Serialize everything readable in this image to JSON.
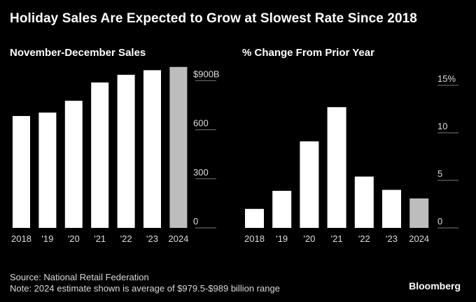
{
  "title": "Holiday Sales Are Expected to Grow at Slowest Rate Since 2018",
  "footer": {
    "source": "Source: National Retail Federation",
    "note": "Note: 2024 estimate shown is average of $979.5-$989 billion range",
    "brand": "Bloomberg"
  },
  "colors": {
    "background": "#000000",
    "bar": "#ffffff",
    "estimate_bar": "#bdbdbd",
    "axis_text": "#dddddd"
  },
  "chart_data": [
    {
      "type": "bar",
      "title": "November-December Sales",
      "categories": [
        "2018",
        "'19",
        "'20",
        "'21",
        "'22",
        "'23",
        "2024"
      ],
      "values": [
        684,
        705,
        777,
        889,
        936,
        964,
        984
      ],
      "estimate_index": 6,
      "ylim": [
        0,
        1000
      ],
      "yticks": [
        0,
        300,
        600,
        900
      ],
      "ytick_labels": [
        "0",
        "300",
        "600",
        "$900B"
      ],
      "axis_side": "right",
      "xlabel": "",
      "ylabel": ""
    },
    {
      "type": "bar",
      "title": "% Change From Prior Year",
      "categories": [
        "2018",
        "'19",
        "'20",
        "'21",
        "'22",
        "'23",
        "2024"
      ],
      "values": [
        2.0,
        3.9,
        9.1,
        12.7,
        5.4,
        4.0,
        3.1
      ],
      "estimate_index": 6,
      "ylim": [
        0,
        15
      ],
      "yticks": [
        0,
        5,
        10,
        15
      ],
      "ytick_labels": [
        "0",
        "5",
        "10",
        "15%"
      ],
      "axis_side": "right",
      "xlabel": "",
      "ylabel": ""
    }
  ]
}
